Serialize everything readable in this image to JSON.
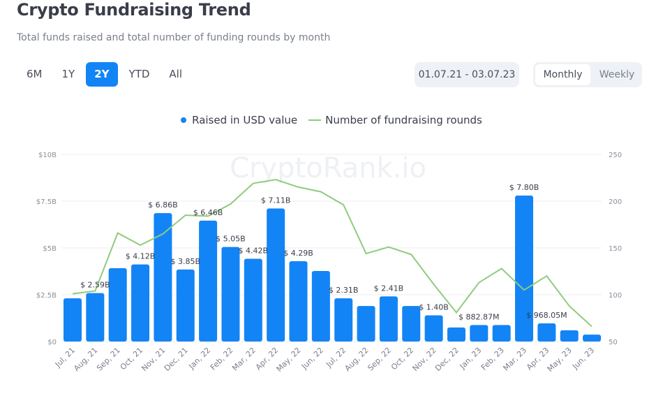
{
  "header": {
    "title": "Crypto Fundraising Trend",
    "subtitle": "Total funds raised and total number of funding rounds by month"
  },
  "ranges": [
    {
      "label": "6M",
      "active": false
    },
    {
      "label": "1Y",
      "active": false
    },
    {
      "label": "2Y",
      "active": true
    },
    {
      "label": "YTD",
      "active": false
    },
    {
      "label": "All",
      "active": false
    }
  ],
  "date_range": "01.07.21 - 03.07.23",
  "interval": {
    "options": [
      "Monthly",
      "Weekly"
    ],
    "selected": "Monthly"
  },
  "watermark": "CryptoRank.io",
  "colors": {
    "bar": "#1384f5",
    "line": "#8fcb7e",
    "grid": "#eceef1"
  },
  "chart_data": {
    "type": "bar+line",
    "legend_position": "top",
    "grid": true,
    "categories": [
      "Jul, 21",
      "Aug, 21",
      "Sep, 21",
      "Oct, 21",
      "Nov, 21",
      "Dec, 21",
      "Jan, 22",
      "Feb, 22",
      "Mar, 22",
      "Apr, 22",
      "May, 22",
      "Jun, 22",
      "Jul, 22",
      "Aug, 22",
      "Sep, 22",
      "Oct, 22",
      "Nov, 22",
      "Dec, 22",
      "Jan, 23",
      "Feb, 23",
      "Mar, 23",
      "Apr, 23",
      "May, 23",
      "Jun, 23"
    ],
    "series": [
      {
        "name": "Raised in USD value",
        "type": "bar",
        "axis": "left",
        "unit": "USD billions",
        "values": [
          2.31,
          2.59,
          3.92,
          4.12,
          6.86,
          3.85,
          6.46,
          5.05,
          4.42,
          7.11,
          4.29,
          3.77,
          2.31,
          1.9,
          2.41,
          1.9,
          1.4,
          0.75,
          0.88287,
          0.88,
          7.8,
          0.96805,
          0.6,
          0.37
        ],
        "labels": [
          null,
          "$ 2.59B",
          null,
          "$ 4.12B",
          "$ 6.86B",
          "$ 3.85B",
          "$ 6.46B",
          "$ 5.05B",
          "$ 4.42B",
          "$ 7.11B",
          "$ 4.29B",
          null,
          "$ 2.31B",
          null,
          "$ 2.41B",
          null,
          "$ 1.40B",
          null,
          "$ 882.87M",
          null,
          "$ 7.80B",
          "$ 968.05M",
          null,
          null
        ]
      },
      {
        "name": "Number of fundraising rounds",
        "type": "line",
        "axis": "right",
        "values": [
          101,
          104,
          166,
          153,
          165,
          185,
          184,
          197,
          219,
          223,
          215,
          210,
          196,
          144,
          151,
          143,
          111,
          81,
          113,
          128,
          105,
          120,
          88,
          66
        ]
      }
    ],
    "y_left": {
      "ylim": [
        0,
        10
      ],
      "ticks": [
        "$0",
        "$2.5B",
        "$5B",
        "$7.5B",
        "$10B"
      ]
    },
    "y_right": {
      "ylim": [
        50,
        250
      ],
      "ticks": [
        "50",
        "100",
        "150",
        "200",
        "250"
      ]
    }
  }
}
